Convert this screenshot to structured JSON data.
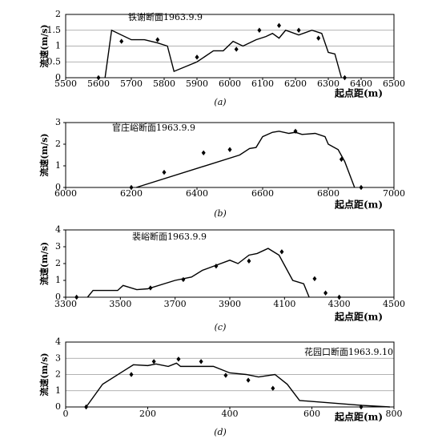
{
  "chart_data": [
    {
      "type": "line",
      "title": "铁谢断面1963.9.9",
      "ylabel": "流速(m/s)",
      "xlabel": "起点距(m)",
      "caption": "(a)",
      "xlim": [
        5500,
        6500
      ],
      "xticks": [
        5500,
        5600,
        5700,
        5800,
        5900,
        6000,
        6100,
        6200,
        6300,
        6400,
        6500
      ],
      "ylim": [
        0,
        2
      ],
      "yticks": [
        0,
        0.5,
        1,
        1.5,
        2
      ],
      "grid": true,
      "series": [
        {
          "mode": "line",
          "color": "#000000",
          "x": [
            5620,
            5640,
            5700,
            5740,
            5780,
            5810,
            5830,
            5900,
            5950,
            5980,
            6010,
            6040,
            6080,
            6110,
            6130,
            6150,
            6170,
            6210,
            6250,
            6280,
            6300,
            6320,
            6340
          ],
          "values": [
            0,
            1.5,
            1.2,
            1.2,
            1.1,
            1.0,
            0.2,
            0.5,
            0.85,
            0.85,
            1.15,
            1.0,
            1.2,
            1.3,
            1.4,
            1.25,
            1.5,
            1.35,
            1.5,
            1.4,
            0.8,
            0.75,
            0
          ]
        },
        {
          "mode": "markers",
          "color": "#000000",
          "x": [
            5600,
            5670,
            5780,
            5900,
            6020,
            6090,
            6150,
            6210,
            6270,
            6350
          ],
          "values": [
            0,
            1.15,
            1.2,
            0.65,
            0.9,
            1.5,
            1.65,
            1.5,
            1.25,
            0
          ]
        }
      ]
    },
    {
      "type": "line",
      "title": "官庄峪断面1963.9.9",
      "ylabel": "流速(m/s)",
      "xlabel": "起点距(m)",
      "caption": "(b)",
      "xlim": [
        6000,
        7000
      ],
      "xticks": [
        6000,
        6200,
        6400,
        6600,
        6800,
        7000
      ],
      "ylim": [
        0,
        3
      ],
      "yticks": [
        0,
        1,
        2,
        3
      ],
      "grid": false,
      "series": [
        {
          "mode": "line",
          "color": "#000000",
          "x": [
            6215,
            6530,
            6560,
            6580,
            6600,
            6630,
            6650,
            6680,
            6700,
            6720,
            6760,
            6790,
            6800,
            6830,
            6850,
            6880
          ],
          "values": [
            0,
            1.5,
            1.8,
            1.85,
            2.35,
            2.55,
            2.6,
            2.5,
            2.55,
            2.45,
            2.5,
            2.35,
            2.0,
            1.75,
            1.2,
            0
          ]
        },
        {
          "mode": "markers",
          "color": "#000000",
          "x": [
            6200,
            6300,
            6420,
            6500,
            6700,
            6840,
            6900
          ],
          "values": [
            0,
            0.7,
            1.6,
            1.75,
            2.6,
            1.3,
            0
          ]
        }
      ]
    },
    {
      "type": "line",
      "title": "裴峪断面1963.9.9",
      "ylabel": "流速(m/s)",
      "xlabel": "起点距(m)",
      "caption": "(c)",
      "xlim": [
        3300,
        4500
      ],
      "xticks": [
        3300,
        3500,
        3700,
        3900,
        4100,
        4300,
        4500
      ],
      "ylim": [
        0,
        4
      ],
      "yticks": [
        0,
        1,
        2,
        3,
        4
      ],
      "grid": false,
      "series": [
        {
          "mode": "line",
          "color": "#000000",
          "x": [
            3380,
            3400,
            3490,
            3510,
            3560,
            3600,
            3700,
            3760,
            3800,
            3850,
            3900,
            3930,
            3970,
            4000,
            4040,
            4080,
            4130,
            4170,
            4190
          ],
          "values": [
            0,
            0.4,
            0.4,
            0.7,
            0.45,
            0.5,
            1.0,
            1.2,
            1.6,
            1.9,
            2.2,
            2.0,
            2.5,
            2.6,
            2.9,
            2.5,
            1.0,
            0.8,
            0
          ]
        },
        {
          "mode": "markers",
          "color": "#000000",
          "x": [
            3340,
            3610,
            3730,
            3850,
            3970,
            4090,
            4210,
            4250,
            4300
          ],
          "values": [
            0,
            0.55,
            1.05,
            1.85,
            2.15,
            2.7,
            1.1,
            0.25,
            0
          ]
        }
      ]
    },
    {
      "type": "line",
      "title": "花园口断面1963.9.10",
      "ylabel": "流速(m/s)",
      "xlabel": "起点距(m)",
      "caption": "(d)",
      "xlim": [
        0,
        800
      ],
      "xticks": [
        0,
        200,
        400,
        600,
        800
      ],
      "ylim": [
        0,
        4
      ],
      "yticks": [
        0,
        1,
        2,
        3,
        4
      ],
      "grid": true,
      "series": [
        {
          "mode": "line",
          "color": "#000000",
          "x": [
            50,
            90,
            140,
            165,
            200,
            220,
            250,
            270,
            280,
            360,
            400,
            440,
            470,
            510,
            540,
            570,
            720,
            790
          ],
          "values": [
            0,
            1.4,
            2.2,
            2.6,
            2.55,
            2.65,
            2.5,
            2.7,
            2.5,
            2.5,
            2.1,
            2.0,
            1.85,
            2.0,
            1.4,
            0.4,
            0.1,
            0
          ]
        },
        {
          "mode": "markers",
          "color": "#000000",
          "x": [
            50,
            160,
            215,
            275,
            330,
            390,
            445,
            505,
            720
          ],
          "values": [
            0,
            2.0,
            2.8,
            2.95,
            2.8,
            1.95,
            1.65,
            1.15,
            0
          ]
        }
      ]
    }
  ]
}
